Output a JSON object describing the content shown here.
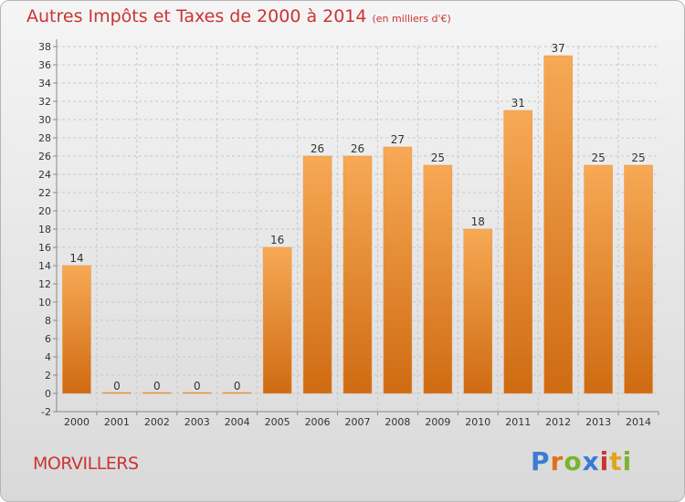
{
  "header": {
    "title": "Autres Impôts et Taxes de 2000 à 2014",
    "unit": "(en milliers d'€)"
  },
  "footer": {
    "commune": "MORVILLERS",
    "logo_letters": [
      "P",
      "r",
      "o",
      "x",
      "i",
      "t",
      "i"
    ]
  },
  "colors": {
    "title": "#cc3333",
    "bar_top": "#f7a955",
    "bar_bottom": "#cf6b12"
  },
  "chart_data": {
    "type": "bar",
    "title": "Autres Impôts et Taxes de 2000 à 2014",
    "categories": [
      "2000",
      "2001",
      "2002",
      "2003",
      "2004",
      "2005",
      "2006",
      "2007",
      "2008",
      "2009",
      "2010",
      "2011",
      "2012",
      "2013",
      "2014"
    ],
    "values": [
      14,
      0,
      0,
      0,
      0,
      16,
      26,
      26,
      27,
      25,
      18,
      31,
      37,
      25,
      25
    ],
    "ylim": [
      -2,
      38
    ],
    "yticks": [
      -2,
      0,
      2,
      4,
      6,
      8,
      10,
      12,
      14,
      16,
      18,
      20,
      22,
      24,
      26,
      28,
      30,
      32,
      34,
      36,
      38
    ],
    "grid": true
  }
}
